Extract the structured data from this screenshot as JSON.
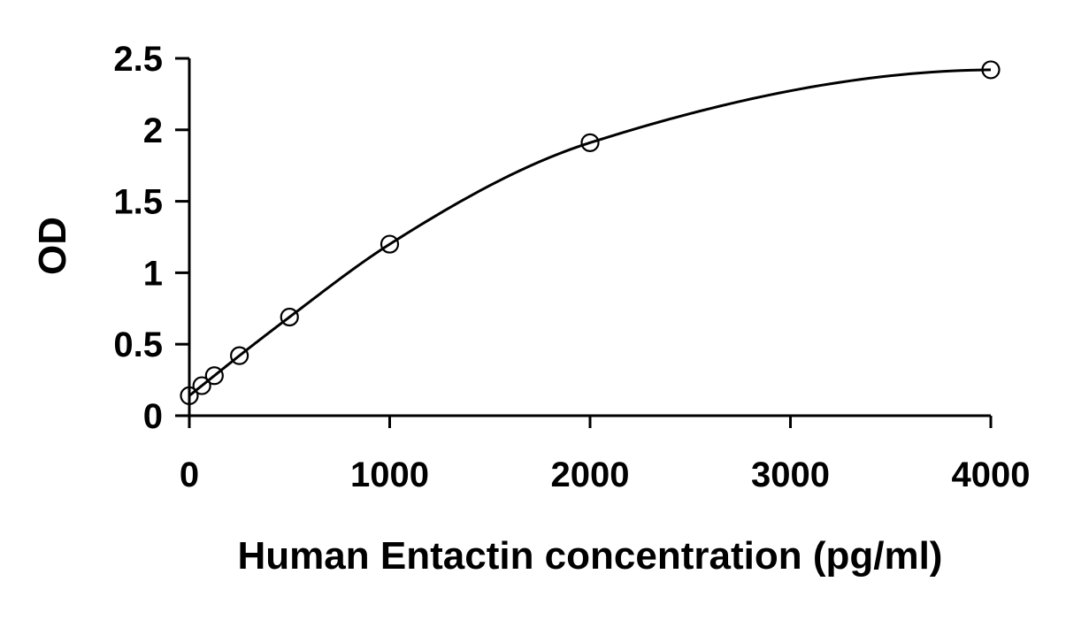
{
  "chart_data": {
    "type": "scatter",
    "title": "",
    "xlabel": "Human Entactin concentration (pg/ml)",
    "ylabel": "OD",
    "xlim": [
      0,
      4000
    ],
    "ylim": [
      0,
      2.5
    ],
    "xticks": [
      0,
      1000,
      2000,
      3000,
      4000
    ],
    "xtick_labels": [
      "0",
      "1000",
      "2000",
      "3000",
      "4000"
    ],
    "yticks": [
      0,
      0.5,
      1,
      1.5,
      2,
      2.5
    ],
    "ytick_labels": [
      "0",
      "0.5",
      "1",
      "1.5",
      "2",
      "2.5"
    ],
    "grid": false,
    "legend": "none",
    "series": [
      {
        "x": [
          0,
          62.5,
          125,
          250,
          500,
          1000,
          2000,
          4000
        ],
        "y": [
          0.14,
          0.21,
          0.28,
          0.42,
          0.69,
          1.2,
          1.91,
          2.42
        ],
        "marker": "open-circle",
        "fit_line": "smooth-curve",
        "color": "#000000"
      }
    ]
  }
}
